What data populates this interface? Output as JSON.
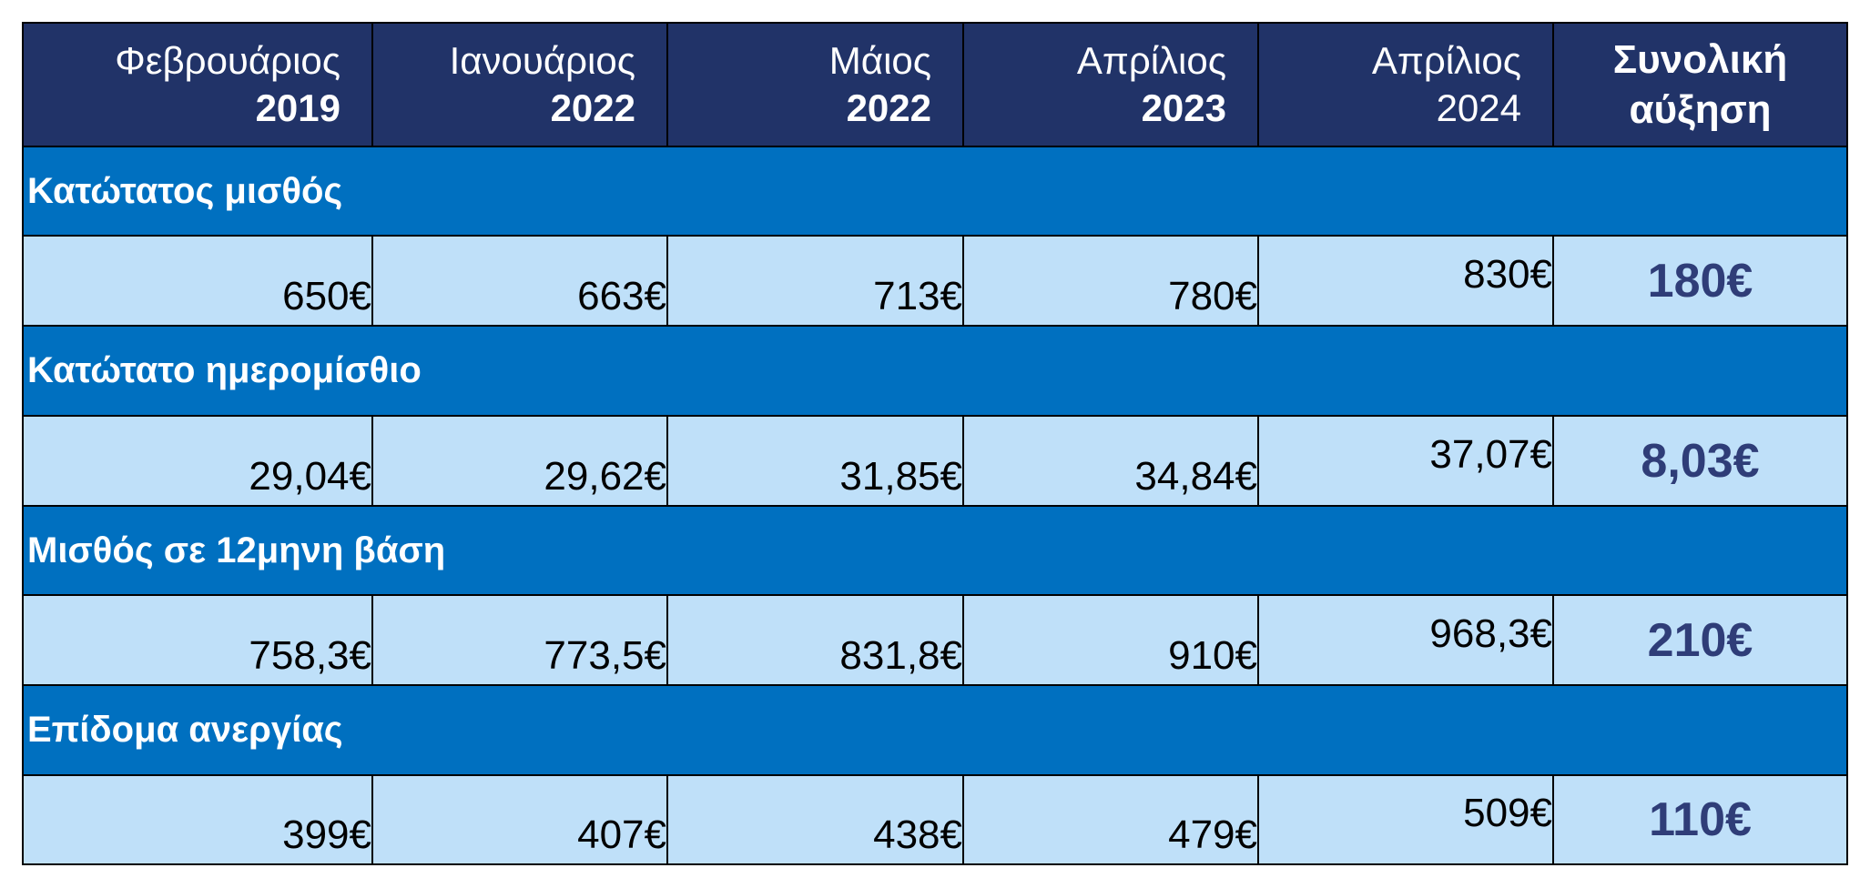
{
  "header": {
    "columns": [
      {
        "month": "Φεβρουάριος",
        "year": "2019"
      },
      {
        "month": "Ιανουάριος",
        "year": "2022"
      },
      {
        "month": "Μάιος",
        "year": "2022"
      },
      {
        "month": "Απρίλιος",
        "year": "2023"
      },
      {
        "month": "Απρίλιος",
        "year": "2024"
      }
    ],
    "total": "Συνολική αύξηση"
  },
  "rows": [
    {
      "label": "Κατώτατος μισθός",
      "values": [
        "650€",
        "663€",
        "713€",
        "780€",
        "830€"
      ],
      "total": "180€"
    },
    {
      "label": "Κατώτατο ημερομίσθιο",
      "values": [
        "29,04€",
        "29,62€",
        "31,85€",
        "34,84€",
        "37,07€"
      ],
      "total": "8,03€"
    },
    {
      "label": "Μισθός σε 12μηνη βάση",
      "values": [
        "758,3€",
        "773,5€",
        "831,8€",
        "910€",
        "968,3€"
      ],
      "total": "210€"
    },
    {
      "label": "Επίδομα ανεργίας",
      "values": [
        "399€",
        "407€",
        "438€",
        "479€",
        "509€"
      ],
      "total": "110€"
    }
  ]
}
